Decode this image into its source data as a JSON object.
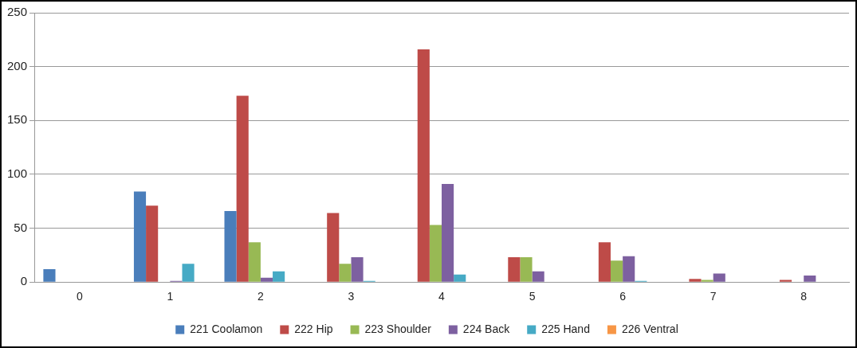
{
  "chart_data": {
    "type": "bar",
    "categories": [
      "0",
      "1",
      "2",
      "3",
      "4",
      "5",
      "6",
      "7",
      "8"
    ],
    "series": [
      {
        "name": "221 Coolamon",
        "color": "#4a7ebb",
        "values": [
          12,
          84,
          66,
          0,
          0,
          0,
          0,
          0,
          0
        ]
      },
      {
        "name": "222 Hip",
        "color": "#be4b48",
        "values": [
          0,
          71,
          173,
          64,
          216,
          23,
          37,
          3,
          2
        ]
      },
      {
        "name": "223 Shoulder",
        "color": "#98b954",
        "values": [
          0,
          0,
          37,
          17,
          53,
          23,
          20,
          2,
          0
        ]
      },
      {
        "name": "224 Back",
        "color": "#7d60a0",
        "values": [
          0,
          1,
          4,
          23,
          91,
          10,
          24,
          8,
          6
        ]
      },
      {
        "name": "225 Hand",
        "color": "#46aac5",
        "values": [
          0,
          17,
          10,
          1,
          7,
          0,
          1,
          0,
          0
        ]
      },
      {
        "name": "226 Ventral",
        "color": "#f79646",
        "values": [
          0,
          0,
          0,
          0,
          0,
          0,
          0,
          0,
          0
        ]
      }
    ],
    "ylim": [
      0,
      250
    ],
    "yticks": [
      0,
      50,
      100,
      150,
      200,
      250
    ],
    "grid": "y",
    "legend": "bottom"
  }
}
